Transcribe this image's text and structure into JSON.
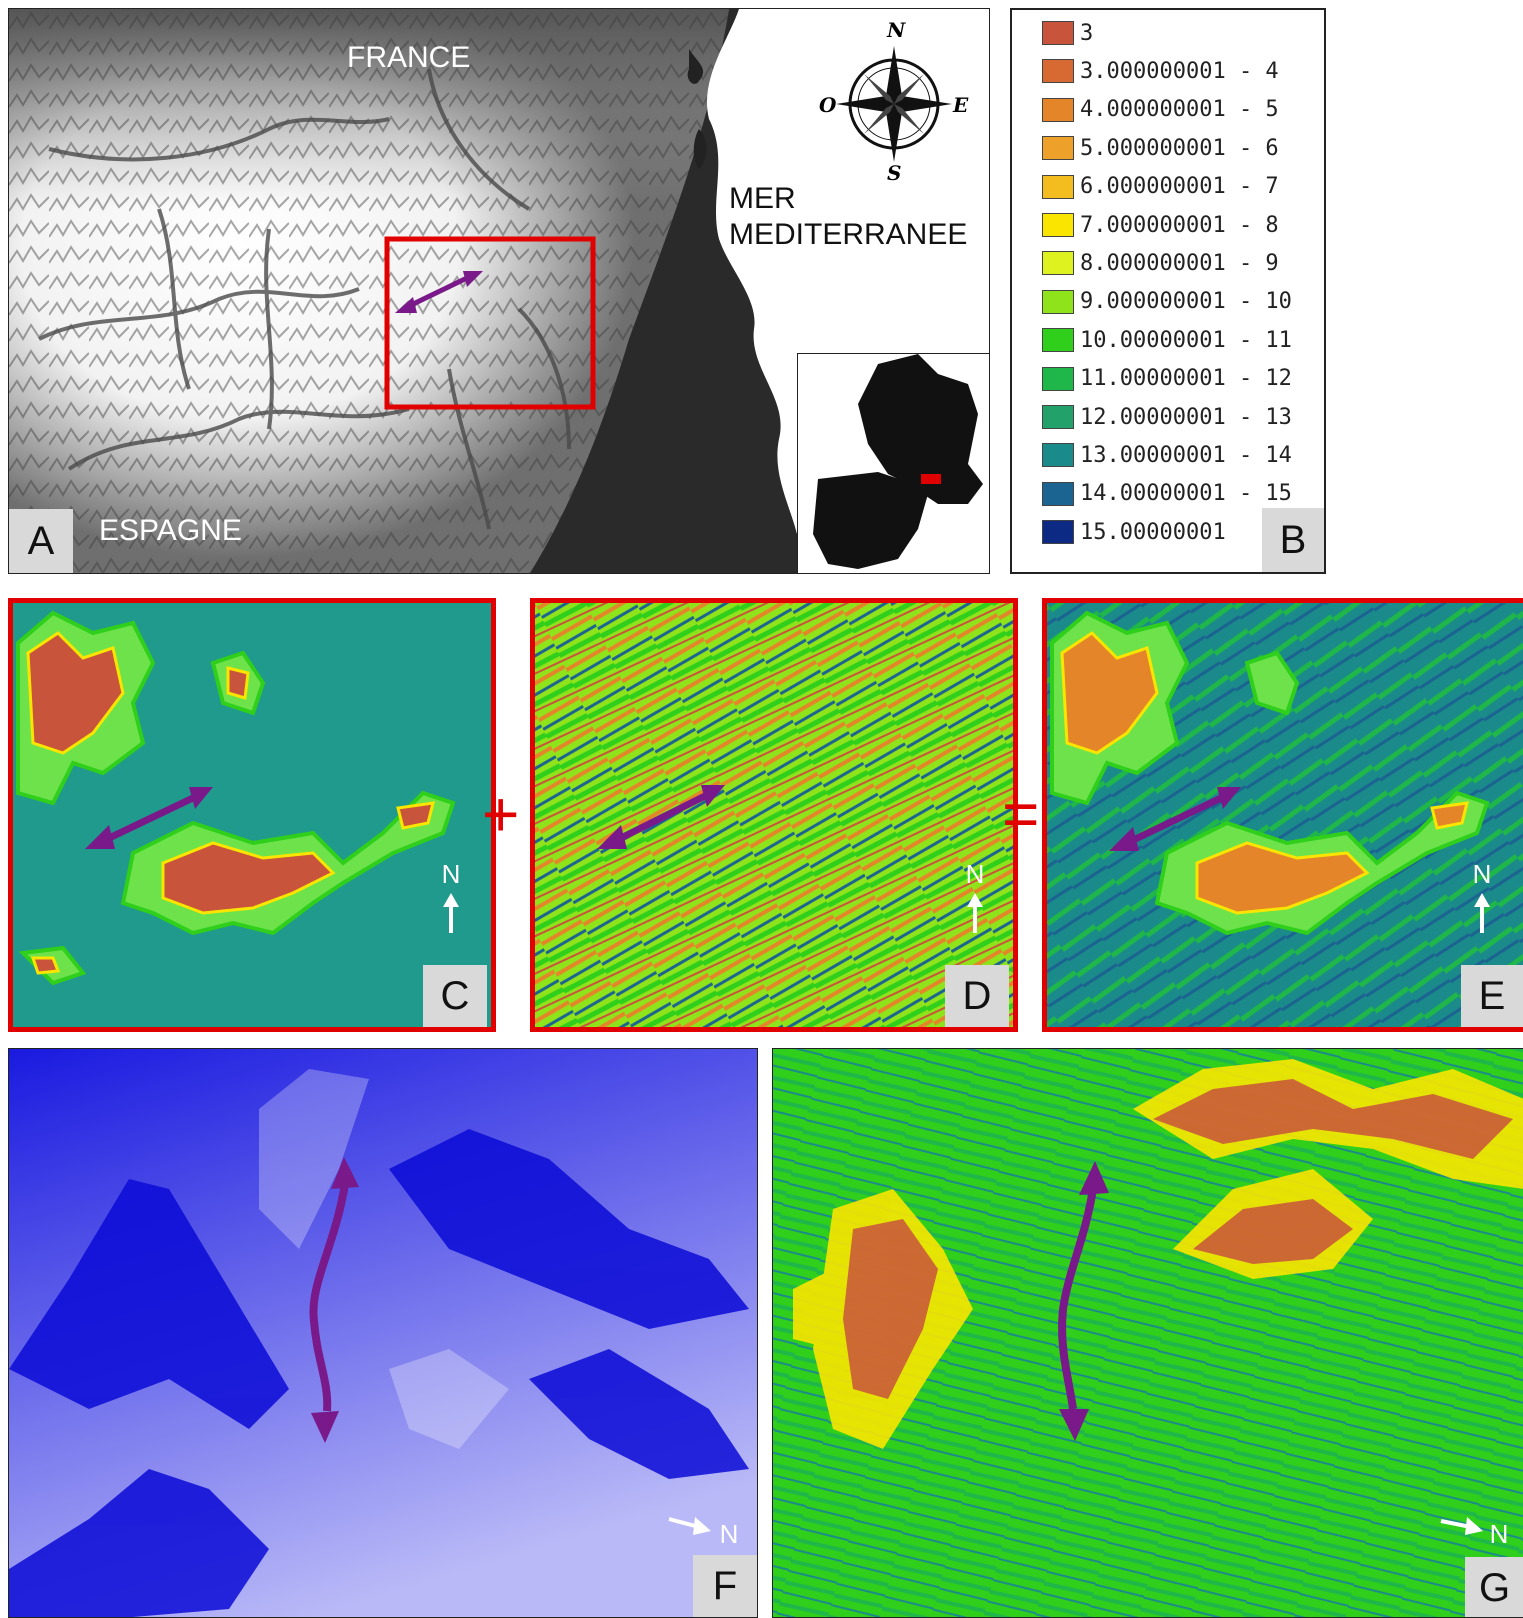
{
  "panelA": {
    "label": "A",
    "country_north": "FRANCE",
    "country_south": "ESPAGNE",
    "sea_line1": "MER",
    "sea_line2": "MEDITERRANEE",
    "compass": {
      "n": "N",
      "s": "S",
      "e": "E",
      "w": "O"
    }
  },
  "panelB": {
    "label": "B",
    "legend": [
      {
        "text": "3",
        "color": "#c8543c"
      },
      {
        "text": "3.000000001 - 4",
        "color": "#d66a32"
      },
      {
        "text": "4.000000001 - 5",
        "color": "#e4852a"
      },
      {
        "text": "5.000000001 - 6",
        "color": "#eda02a"
      },
      {
        "text": "6.000000001 - 7",
        "color": "#f3bd1f"
      },
      {
        "text": "7.000000001 - 8",
        "color": "#fae500"
      },
      {
        "text": "8.000000001 - 9",
        "color": "#ddf21f"
      },
      {
        "text": "9.000000001 - 10",
        "color": "#8fe31a"
      },
      {
        "text": "10.00000001 - 11",
        "color": "#2fcf1c"
      },
      {
        "text": "11.00000001 - 12",
        "color": "#1fb64a"
      },
      {
        "text": "12.00000001 - 13",
        "color": "#22a26a"
      },
      {
        "text": "13.00000001 - 14",
        "color": "#1b8a8a"
      },
      {
        "text": "14.00000001 - 15",
        "color": "#1b6390"
      },
      {
        "text": "15.00000001",
        "color": "#0c2a84"
      }
    ]
  },
  "panelC": {
    "label": "C",
    "north": "N"
  },
  "panelD": {
    "label": "D",
    "north": "N"
  },
  "panelE": {
    "label": "E",
    "north": "N"
  },
  "panelF": {
    "label": "F",
    "north": "N"
  },
  "panelG": {
    "label": "G",
    "north": "N"
  },
  "operators": {
    "plus": "+",
    "equals": "="
  },
  "colors": {
    "frame_red": "#e00000",
    "arrow_purple": "#7a1a8a",
    "teal": "#209a8c"
  }
}
